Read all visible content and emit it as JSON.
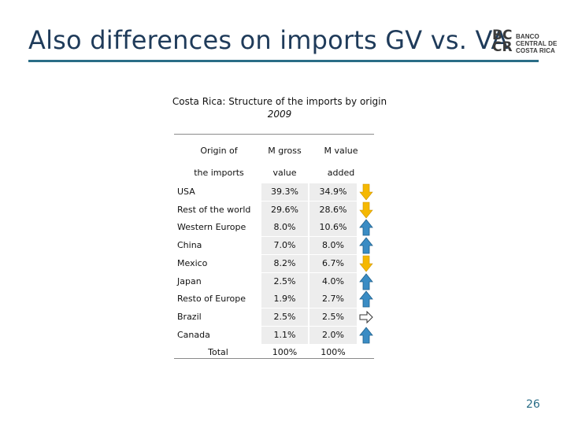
{
  "slide": {
    "title": "Also differences on imports GV vs. VA",
    "page_number": "26"
  },
  "logo": {
    "monogram_top": "BC",
    "monogram_bottom": "CR",
    "line1": "BANCO",
    "line2": "CENTRAL DE",
    "line3": "COSTA RICA"
  },
  "table": {
    "title": "Costa Rica: Structure of the imports by origin",
    "subtitle": "2009",
    "headers": {
      "col1_line1": "Origin of",
      "col1_line2": "the imports",
      "col2_line1": "M gross",
      "col2_line2": "value",
      "col3_line1": "M  value",
      "col3_line2": "added"
    },
    "rows": [
      {
        "origin": "USA",
        "gross": "39.3%",
        "value_added": "34.9%",
        "change": "down"
      },
      {
        "origin": "Rest of the world",
        "gross": "29.6%",
        "value_added": "28.6%",
        "change": "down"
      },
      {
        "origin": "Western Europe",
        "gross": "8.0%",
        "value_added": "10.6%",
        "change": "up"
      },
      {
        "origin": "China",
        "gross": "7.0%",
        "value_added": "8.0%",
        "change": "up"
      },
      {
        "origin": "Mexico",
        "gross": "8.2%",
        "value_added": "6.7%",
        "change": "down"
      },
      {
        "origin": "Japan",
        "gross": "2.5%",
        "value_added": "4.0%",
        "change": "up"
      },
      {
        "origin": "Resto of Europe",
        "gross": "1.9%",
        "value_added": "2.7%",
        "change": "up"
      },
      {
        "origin": "Brazil",
        "gross": "2.5%",
        "value_added": "2.5%",
        "change": "equal"
      },
      {
        "origin": "Canada",
        "gross": "1.1%",
        "value_added": "2.0%",
        "change": "up"
      }
    ],
    "total": {
      "label": "Total",
      "gross": "100%",
      "value_added": "100%"
    }
  },
  "colors": {
    "title": "#1f3b5a",
    "rule": "#2a6d87",
    "arrow_down": "#f5b800",
    "arrow_up": "#3a8cc4",
    "cell_shade": "#ededed"
  }
}
